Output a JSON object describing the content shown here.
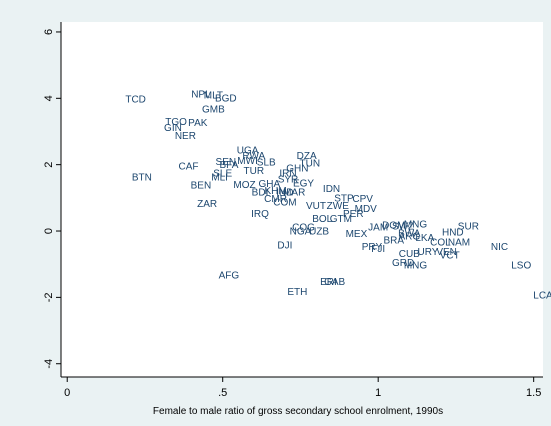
{
  "chart_data": {
    "type": "scatter",
    "title": "",
    "xlabel": "Female to male ratio of gross secondary school enrolment, 1990s",
    "ylabel": "",
    "xlim": [
      -0.02,
      1.53
    ],
    "ylim": [
      -4.4,
      6.3
    ],
    "xticks": [
      {
        "v": 0,
        "label": "0"
      },
      {
        "v": 0.5,
        "label": ".5"
      },
      {
        "v": 1,
        "label": "1"
      },
      {
        "v": 1.5,
        "label": "1.5"
      }
    ],
    "yticks": [
      {
        "v": -4,
        "label": "-4"
      },
      {
        "v": -2,
        "label": "-2"
      },
      {
        "v": 0,
        "label": "0"
      },
      {
        "v": 2,
        "label": "2"
      },
      {
        "v": 4,
        "label": "4"
      },
      {
        "v": 6,
        "label": "6"
      }
    ],
    "grid": false,
    "marker_color": "#1c466e",
    "frame_color": "#ffffff",
    "points": [
      {
        "label": "TCD",
        "x": 0.22,
        "y": 3.95
      },
      {
        "label": "NPL",
        "x": 0.43,
        "y": 4.1
      },
      {
        "label": "MLT",
        "x": 0.47,
        "y": 4.07
      },
      {
        "label": "BGD",
        "x": 0.51,
        "y": 3.98
      },
      {
        "label": "GMB",
        "x": 0.47,
        "y": 3.65
      },
      {
        "label": "TGO",
        "x": 0.35,
        "y": 3.28
      },
      {
        "label": "PAK",
        "x": 0.42,
        "y": 3.25
      },
      {
        "label": "GIN",
        "x": 0.34,
        "y": 3.1
      },
      {
        "label": "NER",
        "x": 0.38,
        "y": 2.85
      },
      {
        "label": "UGA",
        "x": 0.58,
        "y": 2.42
      },
      {
        "label": "SEN",
        "x": 0.51,
        "y": 2.07
      },
      {
        "label": "MWI",
        "x": 0.58,
        "y": 2.1
      },
      {
        "label": "SLB",
        "x": 0.64,
        "y": 2.05
      },
      {
        "label": "RWA",
        "x": 0.6,
        "y": 2.25
      },
      {
        "label": "BFA",
        "x": 0.52,
        "y": 1.98
      },
      {
        "label": "CAF",
        "x": 0.39,
        "y": 1.93
      },
      {
        "label": "SLE",
        "x": 0.5,
        "y": 1.72
      },
      {
        "label": "MLI",
        "x": 0.49,
        "y": 1.6
      },
      {
        "label": "TUR",
        "x": 0.6,
        "y": 1.8
      },
      {
        "label": "DZA",
        "x": 0.77,
        "y": 2.25
      },
      {
        "label": "TUN",
        "x": 0.78,
        "y": 2.02
      },
      {
        "label": "GHN",
        "x": 0.74,
        "y": 1.88
      },
      {
        "label": "IRN",
        "x": 0.71,
        "y": 1.72
      },
      {
        "label": "SYR",
        "x": 0.71,
        "y": 1.54
      },
      {
        "label": "EGY",
        "x": 0.76,
        "y": 1.42
      },
      {
        "label": "BTN",
        "x": 0.24,
        "y": 1.6
      },
      {
        "label": "BEN",
        "x": 0.43,
        "y": 1.36
      },
      {
        "label": "MOZ",
        "x": 0.57,
        "y": 1.37
      },
      {
        "label": "GHA",
        "x": 0.65,
        "y": 1.4
      },
      {
        "label": "BDI",
        "x": 0.62,
        "y": 1.15
      },
      {
        "label": "KHM",
        "x": 0.67,
        "y": 1.2
      },
      {
        "label": "IND",
        "x": 0.7,
        "y": 1.15
      },
      {
        "label": "MAR",
        "x": 0.73,
        "y": 1.15
      },
      {
        "label": "IDN",
        "x": 0.85,
        "y": 1.25
      },
      {
        "label": "CMR",
        "x": 0.67,
        "y": 0.95
      },
      {
        "label": "COM",
        "x": 0.7,
        "y": 0.85
      },
      {
        "label": "ZAR",
        "x": 0.45,
        "y": 0.8
      },
      {
        "label": "IRQ",
        "x": 0.62,
        "y": 0.5
      },
      {
        "label": "VUT",
        "x": 0.8,
        "y": 0.75
      },
      {
        "label": "ZWE",
        "x": 0.87,
        "y": 0.75
      },
      {
        "label": "STP",
        "x": 0.89,
        "y": 0.97
      },
      {
        "label": "CPV",
        "x": 0.95,
        "y": 0.95
      },
      {
        "label": "MDV",
        "x": 0.96,
        "y": 0.65
      },
      {
        "label": "PER",
        "x": 0.92,
        "y": 0.5
      },
      {
        "label": "BOL",
        "x": 0.82,
        "y": 0.35
      },
      {
        "label": "GTM",
        "x": 0.88,
        "y": 0.35
      },
      {
        "label": "COG",
        "x": 0.76,
        "y": 0.1
      },
      {
        "label": "NGA",
        "x": 0.75,
        "y": -0.02
      },
      {
        "label": "UZB",
        "x": 0.81,
        "y": -0.02
      },
      {
        "label": "MEX",
        "x": 0.93,
        "y": -0.1
      },
      {
        "label": "JAM",
        "x": 1.0,
        "y": 0.1
      },
      {
        "label": "DOM",
        "x": 1.05,
        "y": 0.15
      },
      {
        "label": "SWZ",
        "x": 1.08,
        "y": 0.12
      },
      {
        "label": "MNG",
        "x": 1.12,
        "y": 0.18
      },
      {
        "label": "BWA",
        "x": 1.1,
        "y": -0.08
      },
      {
        "label": "ARG",
        "x": 1.1,
        "y": -0.18
      },
      {
        "label": "BRA",
        "x": 1.05,
        "y": -0.3
      },
      {
        "label": "PRY",
        "x": 0.98,
        "y": -0.5
      },
      {
        "label": "FJI",
        "x": 1.0,
        "y": -0.55
      },
      {
        "label": "LKA",
        "x": 1.15,
        "y": -0.22
      },
      {
        "label": "COL",
        "x": 1.2,
        "y": -0.35
      },
      {
        "label": "NAM",
        "x": 1.26,
        "y": -0.35
      },
      {
        "label": "SUR",
        "x": 1.29,
        "y": 0.12
      },
      {
        "label": "HND",
        "x": 1.24,
        "y": -0.05
      },
      {
        "label": "CUB",
        "x": 1.1,
        "y": -0.7
      },
      {
        "label": "URY",
        "x": 1.16,
        "y": -0.65
      },
      {
        "label": "VEN",
        "x": 1.22,
        "y": -0.65
      },
      {
        "label": "VCT",
        "x": 1.23,
        "y": -0.75
      },
      {
        "label": "GRD",
        "x": 1.08,
        "y": -0.97
      },
      {
        "label": "MNG",
        "x": 1.12,
        "y": -1.05
      },
      {
        "label": "DJI",
        "x": 0.7,
        "y": -0.45
      },
      {
        "label": "AFG",
        "x": 0.52,
        "y": -1.35
      },
      {
        "label": "ETH",
        "x": 0.74,
        "y": -1.85
      },
      {
        "label": "ERI",
        "x": 0.84,
        "y": -1.55
      },
      {
        "label": "GAB",
        "x": 0.86,
        "y": -1.55
      },
      {
        "label": "NIC",
        "x": 1.39,
        "y": -0.5
      },
      {
        "label": "LSO",
        "x": 1.46,
        "y": -1.05
      },
      {
        "label": "LCA",
        "x": 1.53,
        "y": -1.95
      }
    ]
  }
}
